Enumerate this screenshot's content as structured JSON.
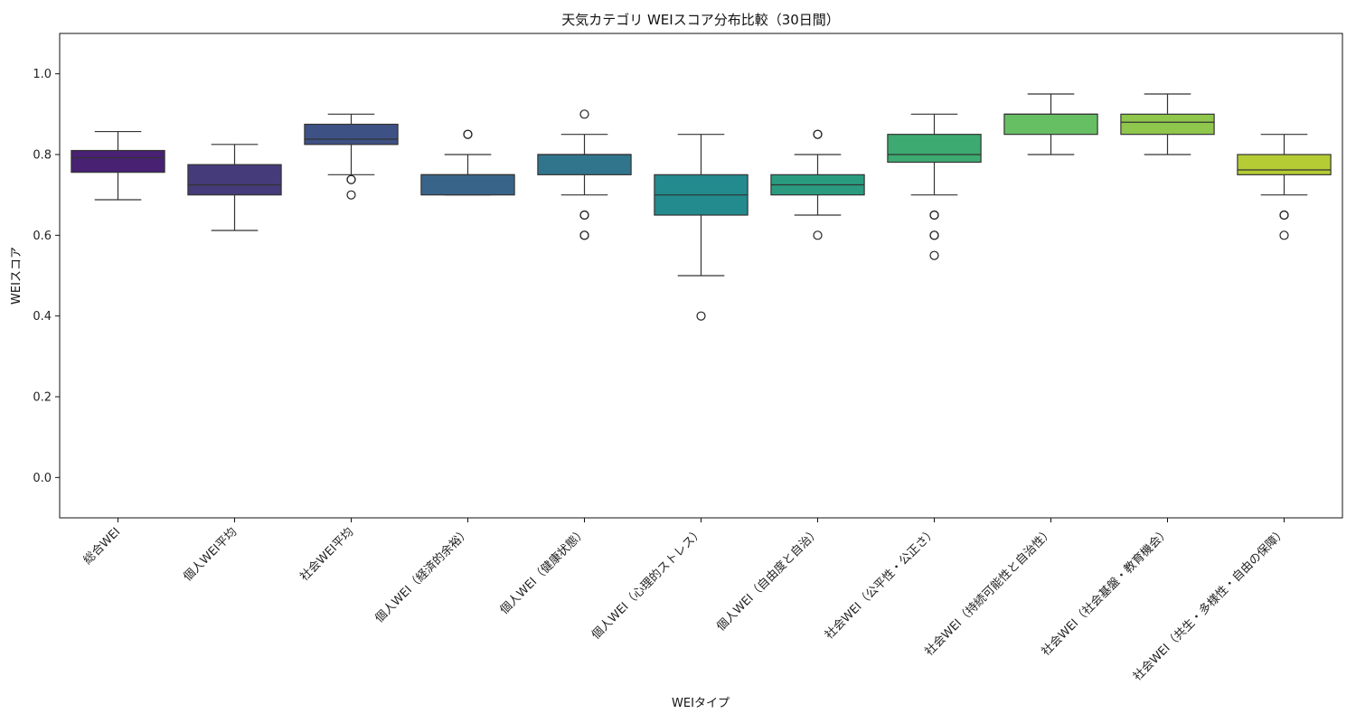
{
  "chart_data": {
    "type": "box",
    "title": "天気カテゴリ WEIスコア分布比較（30日間）",
    "xlabel": "WEIタイプ",
    "ylabel": "WEIスコア",
    "ylim": [
      -0.1,
      1.1
    ],
    "yticks": [
      0.0,
      0.2,
      0.4,
      0.6,
      0.8,
      1.0
    ],
    "ytick_labels": [
      "0.0",
      "0.2",
      "0.4",
      "0.6",
      "0.8",
      "1.0"
    ],
    "grid": false,
    "legend": "none",
    "categories": [
      "総合WEI",
      "個人WEI平均",
      "社会WEI平均",
      "個人WEI（経済的余裕）",
      "個人WEI（健康状態）",
      "個人WEI（心理的ストレス）",
      "個人WEI（自由度と自治）",
      "社会WEI（公平性・公正さ）",
      "社会WEI（持続可能性と自治性）",
      "社会WEI（社会基盤・教育機会）",
      "社会WEI（共生・多様性・自由の保障）"
    ],
    "boxes": [
      {
        "whisker_low": 0.688,
        "q1": 0.756,
        "median": 0.792,
        "q3": 0.81,
        "whisker_high": 0.857,
        "outliers": [],
        "color": "#482173"
      },
      {
        "whisker_low": 0.612,
        "q1": 0.7,
        "median": 0.725,
        "q3": 0.775,
        "whisker_high": 0.825,
        "outliers": [],
        "color": "#463b7a"
      },
      {
        "whisker_low": 0.75,
        "q1": 0.825,
        "median": 0.838,
        "q3": 0.875,
        "whisker_high": 0.9,
        "outliers": [
          0.738,
          0.738,
          0.7
        ],
        "color": "#3e5185"
      },
      {
        "whisker_low": 0.7,
        "q1": 0.7,
        "median": 0.75,
        "q3": 0.75,
        "whisker_high": 0.8,
        "outliers": [
          0.85,
          0.85
        ],
        "color": "#386489"
      },
      {
        "whisker_low": 0.7,
        "q1": 0.75,
        "median": 0.8,
        "q3": 0.8,
        "whisker_high": 0.85,
        "outliers": [
          0.9,
          0.65,
          0.65,
          0.6,
          0.6
        ],
        "color": "#31758d"
      },
      {
        "whisker_low": 0.5,
        "q1": 0.65,
        "median": 0.7,
        "q3": 0.75,
        "whisker_high": 0.85,
        "outliers": [
          0.4
        ],
        "color": "#238a8d"
      },
      {
        "whisker_low": 0.65,
        "q1": 0.7,
        "median": 0.725,
        "q3": 0.75,
        "whisker_high": 0.8,
        "outliers": [
          0.85,
          0.85,
          0.6
        ],
        "color": "#2a9b7f"
      },
      {
        "whisker_low": 0.7,
        "q1": 0.781,
        "median": 0.8,
        "q3": 0.85,
        "whisker_high": 0.9,
        "outliers": [
          0.65,
          0.65,
          0.6,
          0.6,
          0.55
        ],
        "color": "#3dab71"
      },
      {
        "whisker_low": 0.8,
        "q1": 0.85,
        "median": 0.9,
        "q3": 0.9,
        "whisker_high": 0.95,
        "outliers": [],
        "color": "#67bf63"
      },
      {
        "whisker_low": 0.8,
        "q1": 0.85,
        "median": 0.88,
        "q3": 0.9,
        "whisker_high": 0.95,
        "outliers": [],
        "color": "#8fc64c"
      },
      {
        "whisker_low": 0.7,
        "q1": 0.75,
        "median": 0.762,
        "q3": 0.8,
        "whisker_high": 0.85,
        "outliers": [
          0.65,
          0.65,
          0.6
        ],
        "color": "#b5cc34"
      }
    ]
  }
}
